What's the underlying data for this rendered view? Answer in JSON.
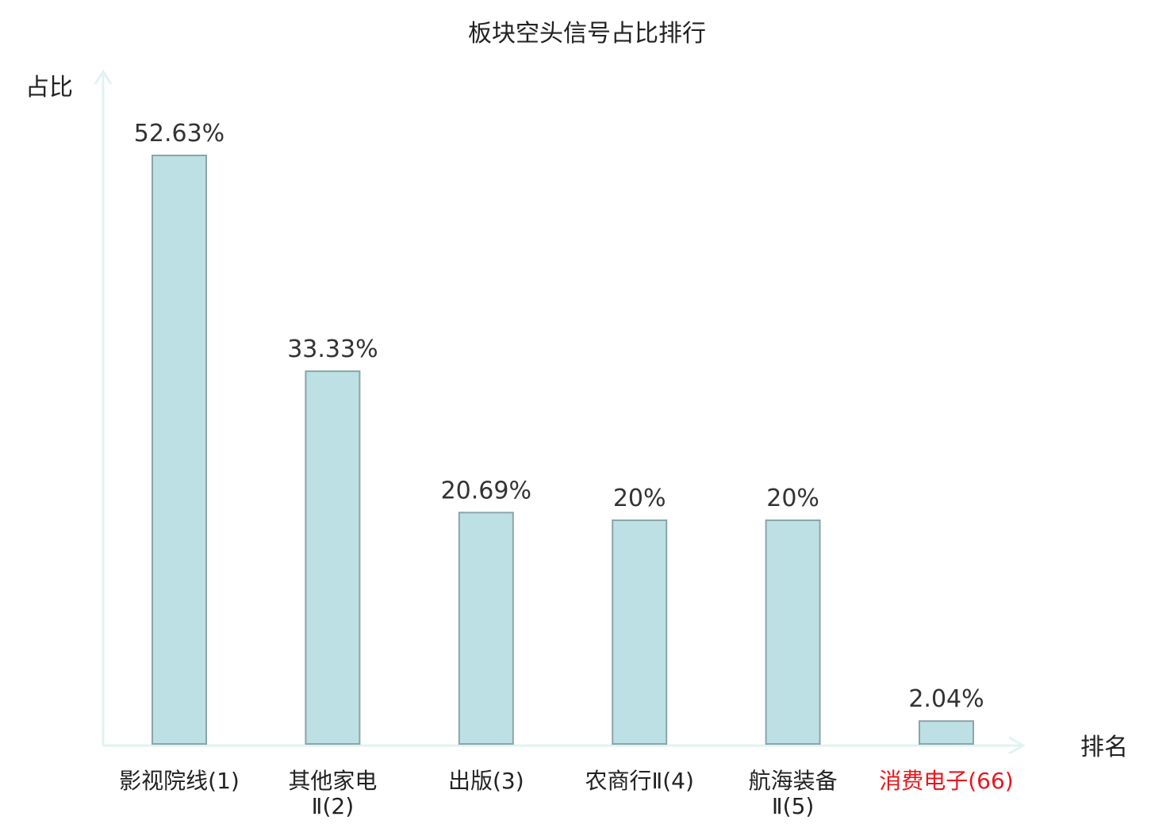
{
  "chart_data": {
    "type": "bar",
    "title": "板块空头信号占比排行",
    "ylabel": "占比",
    "xlabel": "排名",
    "categories": [
      [
        "影视院线(1)"
      ],
      [
        "其他家电",
        "Ⅱ(2)"
      ],
      [
        "出版(3)"
      ],
      [
        "农商行Ⅱ(4)"
      ],
      [
        "航海装备",
        "Ⅱ(5)"
      ],
      [
        "消费电子(66)"
      ]
    ],
    "values": [
      52.63,
      33.33,
      20.69,
      20,
      20,
      2.04
    ],
    "value_labels": [
      "52.63%",
      "33.33%",
      "20.69%",
      "20%",
      "20%",
      "2.04%"
    ],
    "highlight_index": 5,
    "ylim": [
      0,
      52.63
    ],
    "grid": false,
    "colors": {
      "bar_fill": "#bce0e3",
      "bar_stroke": "#8aa5a8",
      "axis": "#e0f3f1",
      "text": "#333333",
      "highlight_text": "#e8171d"
    }
  }
}
